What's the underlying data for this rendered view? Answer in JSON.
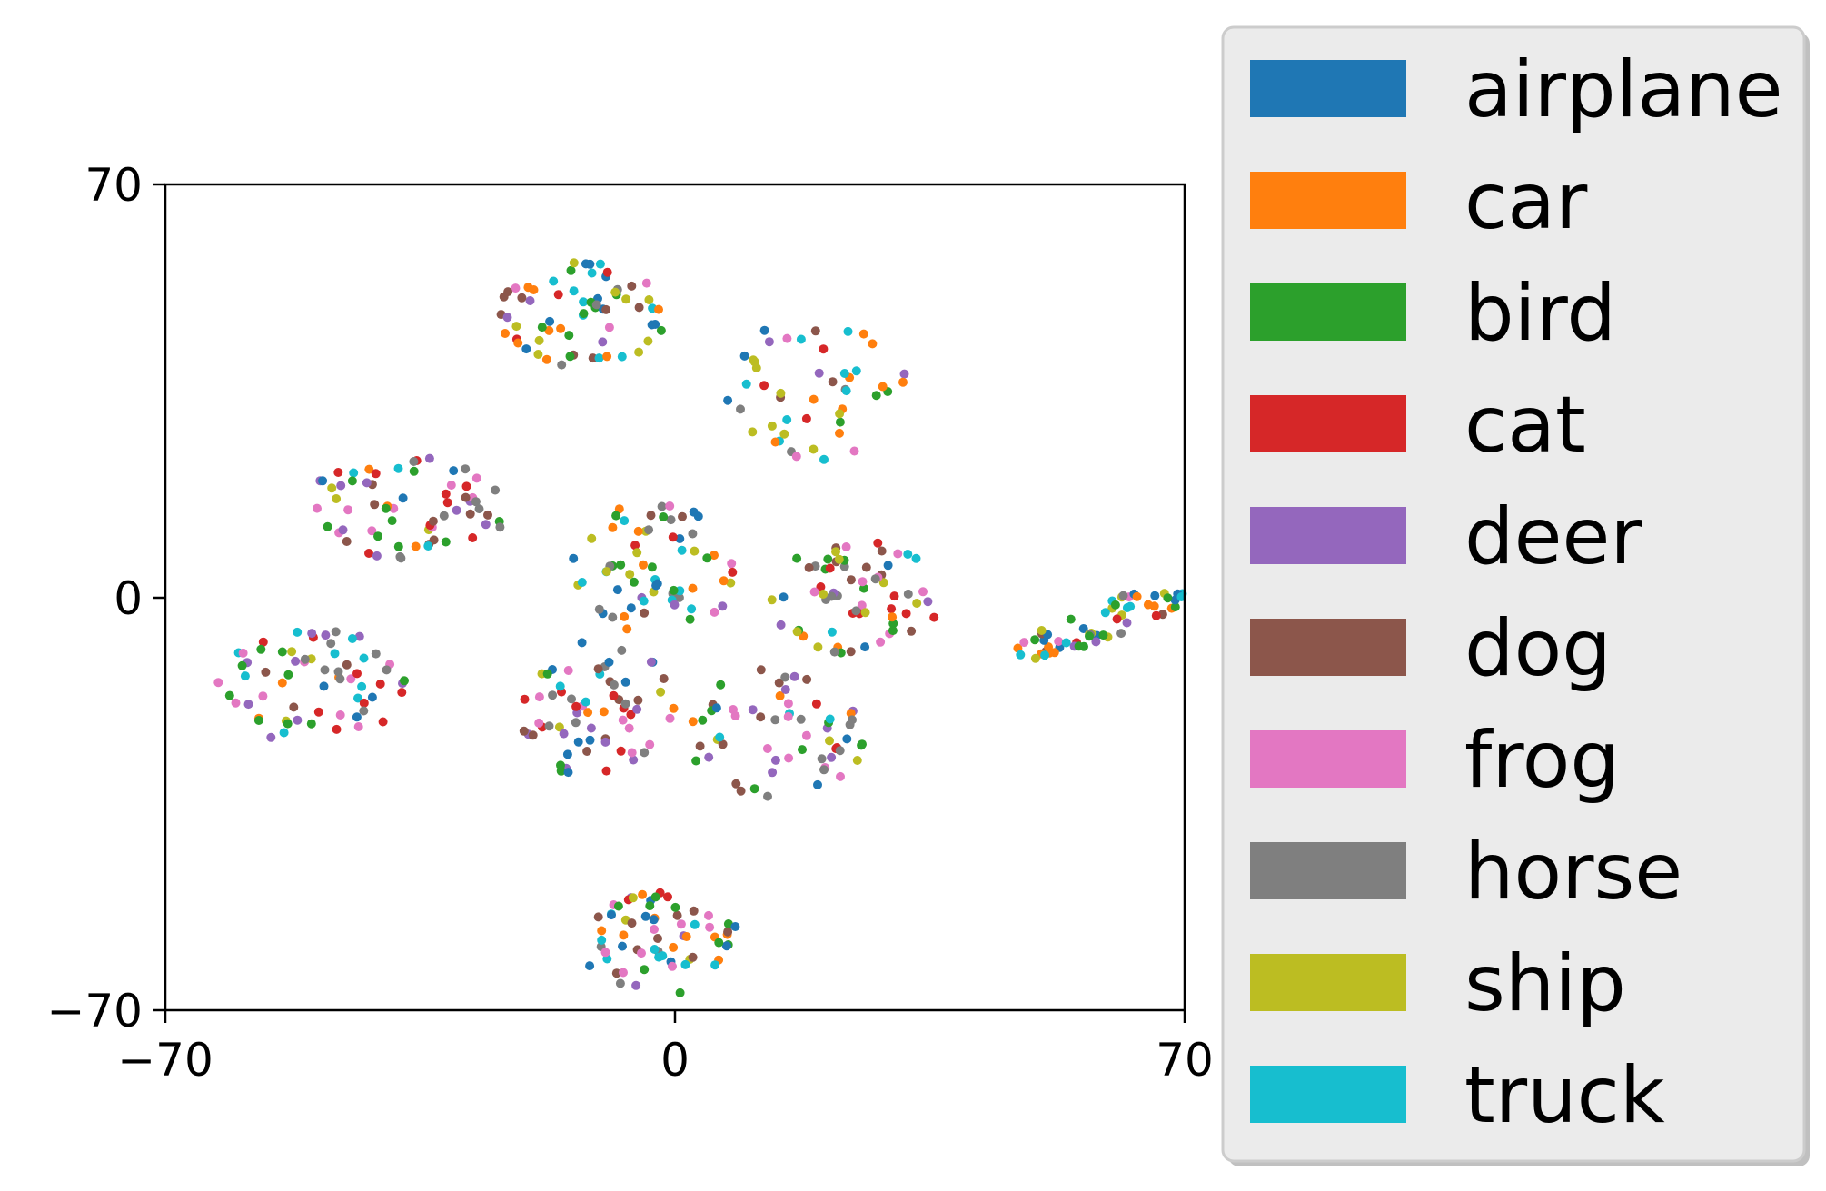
{
  "chart_data": {
    "type": "scatter",
    "title": "",
    "xlabel": "",
    "ylabel": "",
    "xlim": [
      -70,
      70
    ],
    "ylim": [
      -70,
      70
    ],
    "xticks": [
      "−70",
      "0",
      "70"
    ],
    "yticks": [
      "70",
      "0",
      "−70"
    ],
    "grid": false,
    "legend_position": "right",
    "points_per_class_per_cluster": 3,
    "clusters": [
      {
        "cx": -13,
        "cy": 48,
        "rx": 12,
        "ry": 9,
        "tilt": 0,
        "mix": [
          2,
          5,
          8,
          9,
          1,
          0
        ]
      },
      {
        "cx": 19,
        "cy": 35,
        "rx": 13,
        "ry": 12,
        "tilt": 0,
        "mix": [
          1,
          1,
          1,
          9,
          9,
          8
        ]
      },
      {
        "cx": -37,
        "cy": 15,
        "rx": 14,
        "ry": 9,
        "tilt": 0,
        "mix": [
          3,
          5,
          7,
          6,
          2,
          4
        ]
      },
      {
        "cx": -3,
        "cy": 5,
        "rx": 12,
        "ry": 11,
        "tilt": 0,
        "mix": [
          0,
          8,
          9,
          2,
          7,
          1
        ]
      },
      {
        "cx": 25,
        "cy": 0,
        "rx": 12,
        "ry": 10,
        "tilt": 0,
        "mix": [
          5,
          2,
          3,
          7,
          8,
          6
        ]
      },
      {
        "cx": 59,
        "cy": -4,
        "rx": 14,
        "ry": 3,
        "tilt": 25,
        "mix": [
          0,
          1,
          9,
          8,
          2
        ]
      },
      {
        "cx": -50,
        "cy": -15,
        "rx": 13,
        "ry": 10,
        "tilt": 0,
        "mix": [
          3,
          2,
          9,
          4,
          6,
          7
        ]
      },
      {
        "cx": -11,
        "cy": -19,
        "rx": 11,
        "ry": 12,
        "tilt": 0,
        "mix": [
          6,
          3,
          5,
          7,
          0,
          4
        ]
      },
      {
        "cx": 14,
        "cy": -23,
        "rx": 13,
        "ry": 11,
        "tilt": 0,
        "mix": [
          2,
          4,
          6,
          7,
          5
        ]
      },
      {
        "cx": -2,
        "cy": -59,
        "rx": 11,
        "ry": 9,
        "tilt": 0,
        "mix": [
          0,
          9,
          5,
          2,
          6,
          1
        ]
      }
    ],
    "classes": [
      {
        "name": "airplane",
        "color": "#1f77b4"
      },
      {
        "name": "car",
        "color": "#ff7f0e"
      },
      {
        "name": "bird",
        "color": "#2ca02c"
      },
      {
        "name": "cat",
        "color": "#d62728"
      },
      {
        "name": "deer",
        "color": "#9467bd"
      },
      {
        "name": "dog",
        "color": "#8c564b"
      },
      {
        "name": "frog",
        "color": "#e377c2"
      },
      {
        "name": "horse",
        "color": "#7f7f7f"
      },
      {
        "name": "ship",
        "color": "#bcbd22"
      },
      {
        "name": "truck",
        "color": "#17becf"
      }
    ]
  }
}
